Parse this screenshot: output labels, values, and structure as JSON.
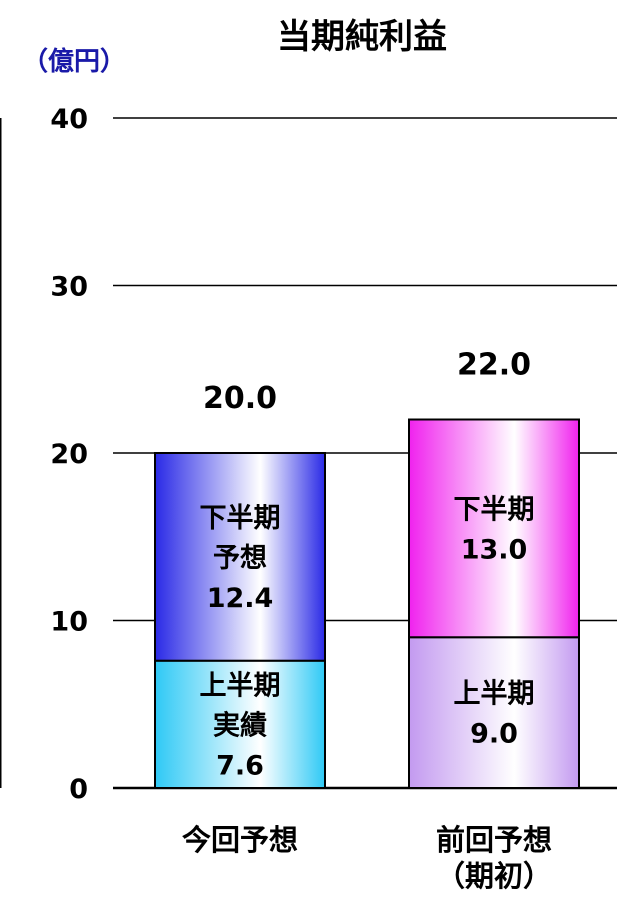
{
  "chart_data": {
    "type": "bar",
    "stacked": true,
    "title": "当期純利益",
    "unit_label": "（億円）",
    "ylim": [
      0,
      40
    ],
    "yticks": [
      "0",
      "10",
      "20",
      "30",
      "40"
    ],
    "grid": true,
    "categories": [
      {
        "label_lines": [
          "今回予想"
        ],
        "total_label": "20.0",
        "segments": [
          {
            "value": 7.6,
            "label_lines": [
              "上半期",
              "実績",
              "7.6"
            ],
            "color_edge": "#2ec9f5",
            "color_mid": "#ffffff"
          },
          {
            "value": 12.4,
            "label_lines": [
              "下半期",
              "予想",
              "12.4"
            ],
            "color_edge": "#2a2ae6",
            "color_mid": "#ffffff"
          }
        ]
      },
      {
        "label_lines": [
          "前回予想",
          "（期初）"
        ],
        "total_label": "22.0",
        "segments": [
          {
            "value": 9.0,
            "label_lines": [
              "上半期",
              "9.0"
            ],
            "color_edge": "#c39af0",
            "color_mid": "#ffffff"
          },
          {
            "value": 13.0,
            "label_lines": [
              "下半期",
              "13.0"
            ],
            "color_edge": "#f022ee",
            "color_mid": "#ffffff"
          }
        ]
      }
    ]
  }
}
